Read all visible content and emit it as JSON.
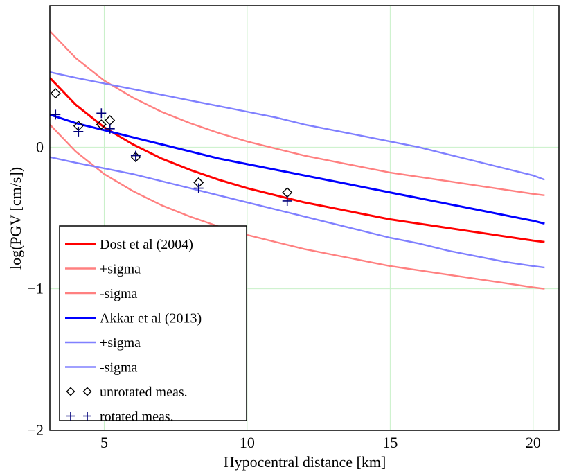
{
  "chart_data": {
    "type": "line",
    "title": "",
    "xlabel": "Hypocentral distance [km]",
    "ylabel": "log(PGV [cm/s])",
    "xlim": [
      3.1,
      20.9
    ],
    "ylim": [
      -2,
      1
    ],
    "x_ticks": [
      5,
      10,
      15,
      20
    ],
    "x_tick_labels": [
      "5",
      "10",
      "15",
      "20"
    ],
    "y_ticks": [
      -2,
      -1,
      0
    ],
    "y_tick_labels": [
      "−2",
      "−1",
      "0"
    ],
    "grid": true,
    "legend_position": "bottom-left",
    "series": [
      {
        "name": "Dost et al (2004)",
        "kind": "line",
        "color": "#ff0000",
        "x": [
          3.1,
          4,
          5,
          6,
          7,
          8,
          9,
          10,
          11,
          12,
          13,
          14,
          15,
          16,
          17,
          18,
          19,
          20,
          20.4
        ],
        "y": [
          0.49,
          0.3,
          0.14,
          0.02,
          -0.08,
          -0.16,
          -0.23,
          -0.29,
          -0.34,
          -0.39,
          -0.43,
          -0.47,
          -0.51,
          -0.54,
          -0.57,
          -0.6,
          -0.63,
          -0.66,
          -0.67
        ]
      },
      {
        "name": "+sigma",
        "kind": "line",
        "color": "#ff8080",
        "x": [
          3.1,
          4,
          5,
          6,
          7,
          8,
          9,
          10,
          11,
          12,
          13,
          14,
          15,
          16,
          17,
          18,
          19,
          20,
          20.4
        ],
        "y": [
          0.82,
          0.63,
          0.47,
          0.35,
          0.25,
          0.17,
          0.1,
          0.04,
          -0.01,
          -0.06,
          -0.1,
          -0.14,
          -0.18,
          -0.21,
          -0.24,
          -0.27,
          -0.3,
          -0.33,
          -0.34
        ]
      },
      {
        "name": "-sigma",
        "kind": "line",
        "color": "#ff8080",
        "x": [
          3.1,
          4,
          5,
          6,
          7,
          8,
          9,
          10,
          11,
          12,
          13,
          14,
          15,
          16,
          17,
          18,
          19,
          20,
          20.4
        ],
        "y": [
          0.16,
          -0.03,
          -0.19,
          -0.31,
          -0.41,
          -0.49,
          -0.56,
          -0.62,
          -0.67,
          -0.72,
          -0.76,
          -0.8,
          -0.84,
          -0.87,
          -0.9,
          -0.93,
          -0.96,
          -0.99,
          -1.0
        ]
      },
      {
        "name": "Akkar et al (2013)",
        "kind": "line",
        "color": "#0000ff",
        "x": [
          3.1,
          4,
          5,
          6,
          7,
          8,
          9,
          10,
          11,
          12,
          13,
          14,
          15,
          16,
          17,
          18,
          19,
          20,
          20.4
        ],
        "y": [
          0.23,
          0.17,
          0.12,
          0.07,
          0.02,
          -0.03,
          -0.08,
          -0.12,
          -0.16,
          -0.2,
          -0.24,
          -0.28,
          -0.32,
          -0.36,
          -0.4,
          -0.44,
          -0.48,
          -0.52,
          -0.54
        ]
      },
      {
        "name": "+sigma",
        "kind": "line",
        "color": "#8080ff",
        "x": [
          3.1,
          4,
          5,
          6,
          7,
          8,
          9,
          10,
          11,
          12,
          13,
          14,
          15,
          16,
          17,
          18,
          19,
          20,
          20.4
        ],
        "y": [
          0.53,
          0.49,
          0.45,
          0.41,
          0.37,
          0.33,
          0.29,
          0.25,
          0.21,
          0.16,
          0.12,
          0.08,
          0.04,
          0.0,
          -0.05,
          -0.1,
          -0.15,
          -0.2,
          -0.23
        ]
      },
      {
        "name": "-sigma",
        "kind": "line",
        "color": "#8080ff",
        "x": [
          3.1,
          4,
          5,
          6,
          7,
          8,
          9,
          10,
          11,
          12,
          13,
          14,
          15,
          16,
          17,
          18,
          19,
          20,
          20.4
        ],
        "y": [
          -0.07,
          -0.11,
          -0.15,
          -0.19,
          -0.24,
          -0.29,
          -0.34,
          -0.39,
          -0.44,
          -0.49,
          -0.54,
          -0.59,
          -0.64,
          -0.68,
          -0.73,
          -0.77,
          -0.81,
          -0.84,
          -0.85
        ]
      },
      {
        "name": "unrotated meas.",
        "kind": "marker-diamond",
        "color": "#000000",
        "x": [
          3.3,
          4.1,
          4.9,
          5.2,
          6.1,
          8.3,
          11.4
        ],
        "y": [
          0.38,
          0.15,
          0.16,
          0.19,
          -0.07,
          -0.25,
          -0.32
        ]
      },
      {
        "name": "rotated meas.",
        "kind": "marker-plus",
        "color": "#00007a",
        "x": [
          3.3,
          4.1,
          4.9,
          5.2,
          6.1,
          8.3,
          11.4
        ],
        "y": [
          0.23,
          0.11,
          0.24,
          0.13,
          -0.06,
          -0.29,
          -0.38
        ]
      }
    ]
  }
}
